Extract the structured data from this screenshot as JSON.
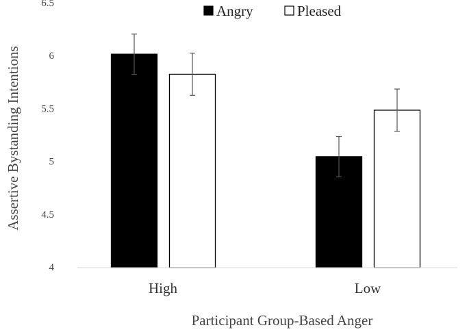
{
  "chart_data": {
    "type": "bar",
    "categories": [
      "High",
      "Low"
    ],
    "series": [
      {
        "name": "Angry",
        "values": [
          6.02,
          5.05
        ],
        "error": [
          0.19,
          0.19
        ],
        "color": "#000000"
      },
      {
        "name": "Pleased",
        "values": [
          5.83,
          5.49
        ],
        "error": [
          0.2,
          0.2
        ],
        "color": "#ffffff"
      }
    ],
    "xlabel": "Participant Group-Based Anger",
    "ylabel": "Assertive Bystanding Intentions",
    "ylim": [
      4,
      6.5
    ],
    "yticks": [
      "4",
      "4.5",
      "5",
      "5.5",
      "6",
      "6.5"
    ],
    "grid": false,
    "legend_position": "top-center"
  }
}
